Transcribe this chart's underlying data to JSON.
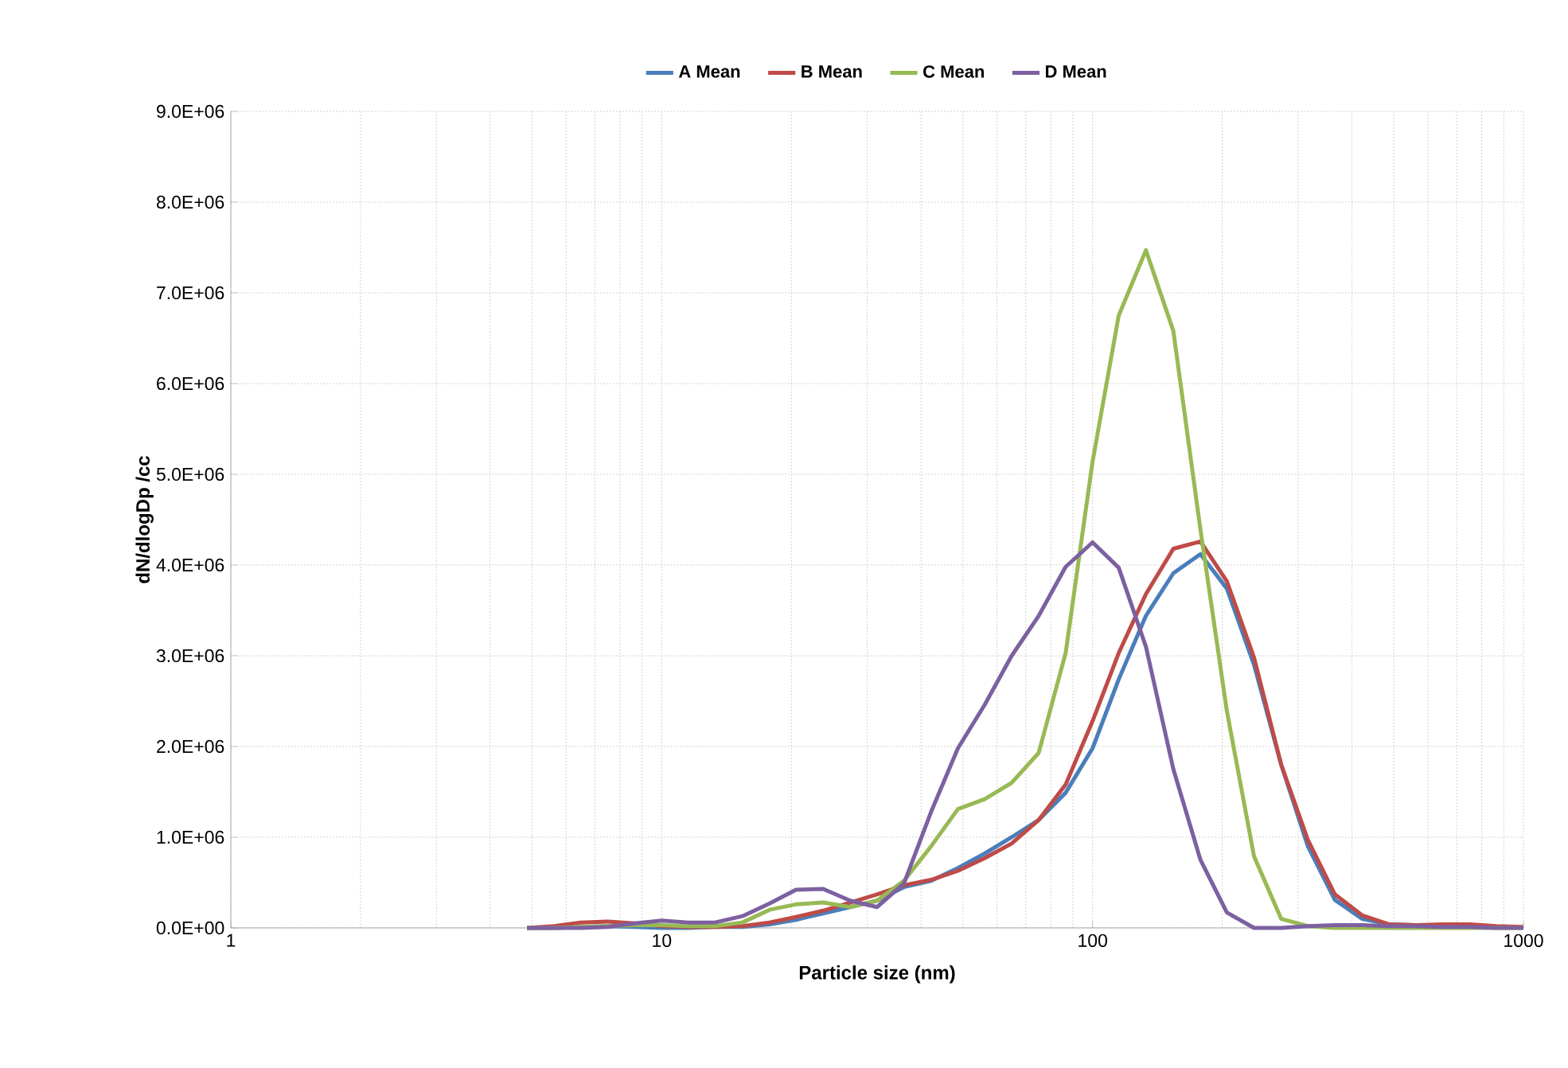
{
  "chart_data": {
    "type": "line",
    "xlabel": "Particle size (nm)",
    "ylabel": "dN/dlogDp /cc",
    "x": [
      4.87,
      5.62,
      6.49,
      7.5,
      8.66,
      10,
      11.5,
      13.3,
      15.4,
      17.8,
      20.5,
      23.7,
      27.4,
      31.6,
      36.5,
      42.2,
      48.7,
      56.2,
      64.9,
      75,
      86.6,
      100,
      115,
      133,
      154,
      178,
      205,
      237,
      274,
      316,
      365,
      422,
      487,
      562,
      649,
      750,
      866,
      1000
    ],
    "series": [
      {
        "name": "A Mean",
        "color": "#4a7ebb",
        "values": [
          0,
          0,
          10000.0,
          20000.0,
          10000.0,
          0,
          0,
          10000.0,
          10000.0,
          40000.0,
          90000.0,
          160000.0,
          230000.0,
          300000.0,
          450000.0,
          520000.0,
          660000.0,
          820000.0,
          1000000.0,
          1190000.0,
          1490000.0,
          1980000.0,
          2740000.0,
          3440000.0,
          3910000.0,
          4120000.0,
          3740000.0,
          2900000.0,
          1800000.0,
          900000.0,
          310000.0,
          100000.0,
          40000.0,
          30000.0,
          null,
          null,
          null,
          null
        ]
      },
      {
        "name": "B Mean",
        "color": "#be4b48",
        "values": [
          0,
          20000.0,
          60000.0,
          70000.0,
          50000.0,
          20000.0,
          10000.0,
          10000.0,
          20000.0,
          60000.0,
          120000.0,
          190000.0,
          280000.0,
          370000.0,
          470000.0,
          530000.0,
          630000.0,
          770000.0,
          930000.0,
          1190000.0,
          1580000.0,
          2280000.0,
          3030000.0,
          3680000.0,
          4180000.0,
          4260000.0,
          3820000.0,
          2980000.0,
          1800000.0,
          970000.0,
          370000.0,
          140000.0,
          40000.0,
          30000.0,
          40000.0,
          40000.0,
          20000.0,
          10000.0
        ]
      },
      {
        "name": "C Mean",
        "color": "#98b954",
        "values": [
          0,
          0,
          10000.0,
          20000.0,
          30000.0,
          30000.0,
          20000.0,
          20000.0,
          60000.0,
          200000.0,
          260000.0,
          280000.0,
          230000.0,
          300000.0,
          520000.0,
          900000.0,
          1310000.0,
          1420000.0,
          1600000.0,
          1930000.0,
          3030000.0,
          5140000.0,
          6750000.0,
          7470000.0,
          6580000.0,
          4390000.0,
          2390000.0,
          790000.0,
          100000.0,
          20000.0,
          0,
          0,
          0,
          0,
          0,
          0,
          0,
          0
        ]
      },
      {
        "name": "D Mean",
        "color": "#7d60a0",
        "values": [
          0,
          0,
          0,
          10000.0,
          50000.0,
          80000.0,
          60000.0,
          60000.0,
          130000.0,
          270000.0,
          420000.0,
          430000.0,
          300000.0,
          230000.0,
          490000.0,
          1280000.0,
          1980000.0,
          2460000.0,
          3000000.0,
          3440000.0,
          3980000.0,
          4250000.0,
          3970000.0,
          3100000.0,
          1750000.0,
          750000.0,
          170000.0,
          0,
          0,
          20000.0,
          30000.0,
          30000.0,
          20000.0,
          20000.0,
          10000.0,
          10000.0,
          0,
          0
        ]
      }
    ],
    "log": "x",
    "xlim": [
      1,
      1000
    ],
    "xticks": [
      1,
      10,
      100,
      1000
    ],
    "ylim": [
      0,
      9000000
    ],
    "yticks": [
      {
        "value": 0,
        "label": "0.0E+00"
      },
      {
        "value": 1000000,
        "label": "1.0E+06"
      },
      {
        "value": 2000000,
        "label": "2.0E+06"
      },
      {
        "value": 3000000,
        "label": "3.0E+06"
      },
      {
        "value": 4000000,
        "label": "4.0E+06"
      },
      {
        "value": 5000000,
        "label": "5.0E+06"
      },
      {
        "value": 6000000,
        "label": "6.0E+06"
      },
      {
        "value": 7000000,
        "label": "7.0E+06"
      },
      {
        "value": 8000000,
        "label": "8.0E+06"
      },
      {
        "value": 9000000,
        "label": "9.0E+06"
      }
    ],
    "grid": true,
    "legend": "top",
    "marker": "none",
    "line_style": "solid"
  }
}
